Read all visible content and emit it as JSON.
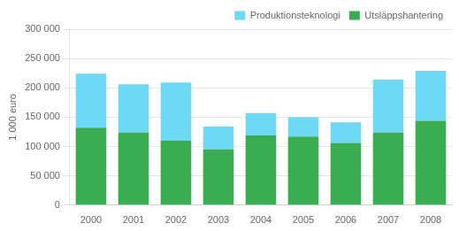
{
  "chart_data": {
    "type": "bar",
    "stacked": true,
    "ylabel": "1 000 euro",
    "categories": [
      "2000",
      "2001",
      "2002",
      "2003",
      "2004",
      "2005",
      "2006",
      "2007",
      "2008"
    ],
    "series": [
      {
        "name": "Utsläppshantering",
        "color": "#3aad52",
        "values": [
          132000,
          124000,
          110000,
          95000,
          119000,
          117000,
          106000,
          124000,
          144000
        ]
      },
      {
        "name": "Produktionsteknologi",
        "color": "#6dd9f5",
        "values": [
          92000,
          82000,
          99000,
          39000,
          38000,
          33000,
          35000,
          90000,
          85000
        ]
      }
    ],
    "ylim": [
      0,
      300000
    ],
    "yticks": [
      0,
      {
        "value": 50000,
        "label": "50 000"
      },
      {
        "value": 100000,
        "label": "100 000"
      },
      {
        "value": 150000,
        "label": "150 000"
      },
      {
        "value": 200000,
        "label": "200 000"
      },
      {
        "value": 250000,
        "label": "250 000"
      },
      {
        "value": 300000,
        "label": "300 000"
      }
    ],
    "grid": true,
    "legend": "upper right"
  }
}
